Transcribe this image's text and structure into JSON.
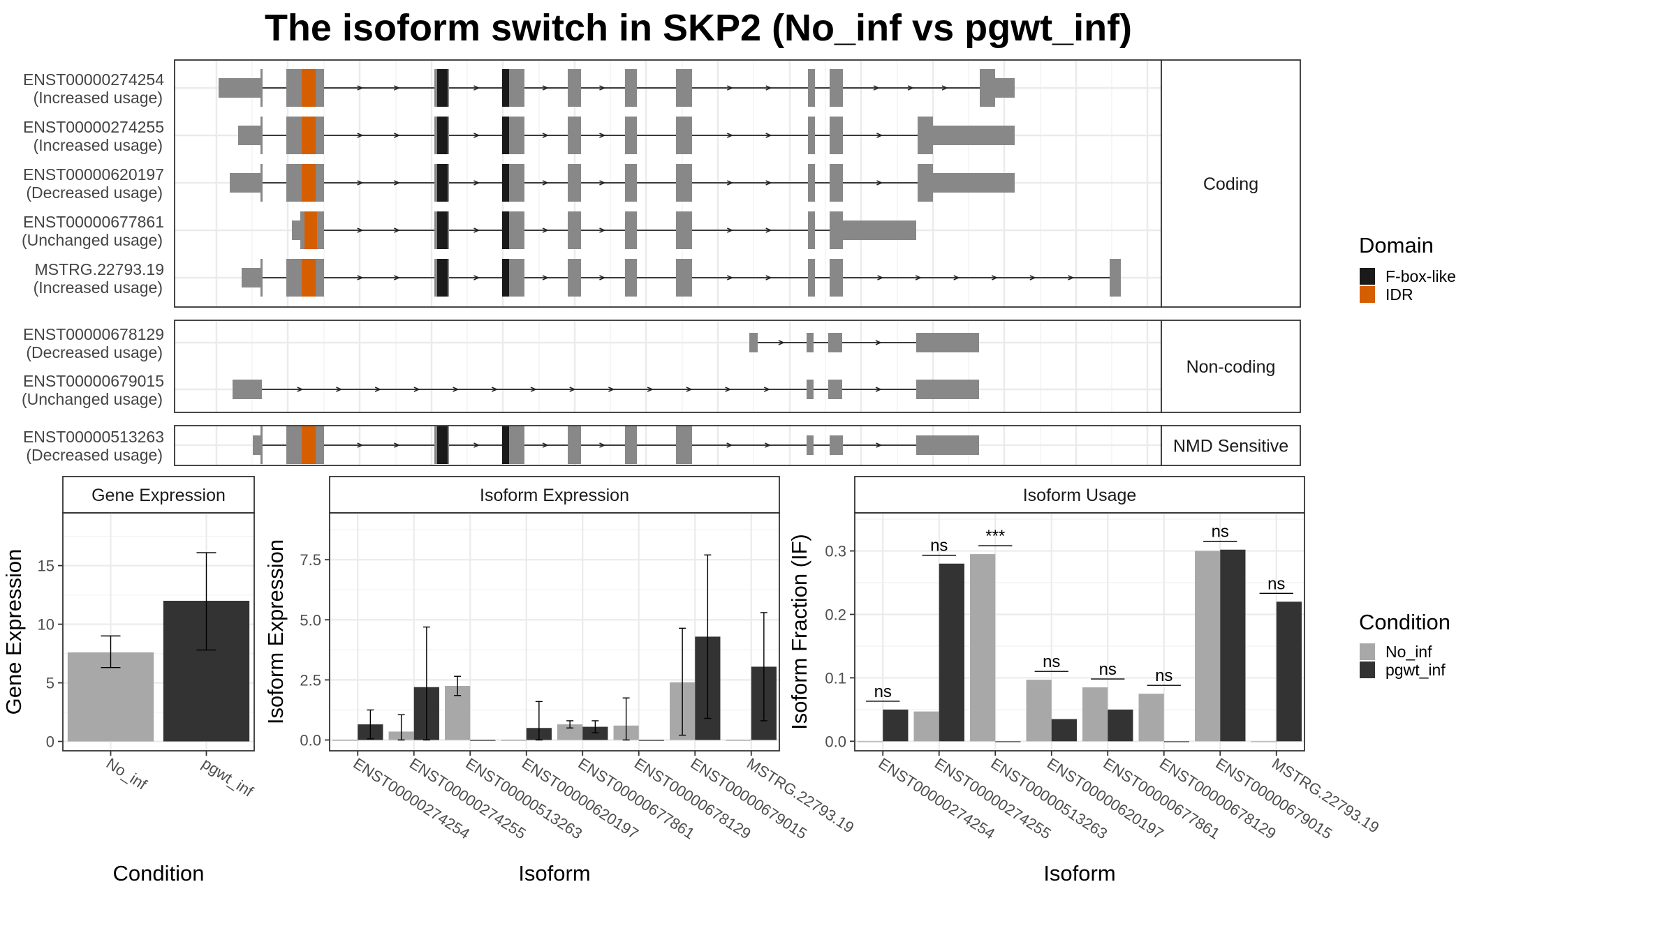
{
  "title": "The isoform switch in SKP2 (No_inf vs pgwt_inf)",
  "colors": {
    "exon": "#888888",
    "fbox": "#1a1a1a",
    "idr": "#d55e00",
    "No_inf": "#a8a8a8",
    "pgwt_inf": "#333333",
    "grid": "#ebebeb",
    "line": "#000000"
  },
  "transcripts": {
    "groups": [
      {
        "label": "Coding",
        "rows": [
          {
            "id": "ENST00000274254",
            "status": "(Increased usage)"
          },
          {
            "id": "ENST00000274255",
            "status": "(Increased usage)"
          },
          {
            "id": "ENST00000620197",
            "status": "(Decreased usage)"
          },
          {
            "id": "ENST00000677861",
            "status": "(Unchanged usage)"
          },
          {
            "id": "MSTRG.22793.19",
            "status": "(Increased usage)"
          }
        ]
      },
      {
        "label": "Non-coding",
        "rows": [
          {
            "id": "ENST00000678129",
            "status": "(Decreased usage)"
          },
          {
            "id": "ENST00000679015",
            "status": "(Unchanged usage)"
          }
        ]
      },
      {
        "label": "NMD Sensitive",
        "rows": [
          {
            "id": "ENST00000513263",
            "status": "(Decreased usage)"
          }
        ]
      }
    ],
    "domain_legend": {
      "title": "Domain",
      "items": [
        {
          "label": "F-box-like",
          "color": "#1a1a1a"
        },
        {
          "label": "IDR",
          "color": "#d55e00"
        }
      ]
    }
  },
  "condition_legend": {
    "title": "Condition",
    "items": [
      {
        "label": "No_inf",
        "color": "#a8a8a8"
      },
      {
        "label": "pgwt_inf",
        "color": "#333333"
      }
    ]
  },
  "chart_data": [
    {
      "type": "bar",
      "title": "Gene Expression",
      "xlabel": "Condition",
      "ylabel": "Gene Expression",
      "categories": [
        "No_inf",
        "pgwt_inf"
      ],
      "values": [
        7.6,
        12.0
      ],
      "error_low": [
        6.3,
        7.8
      ],
      "error_high": [
        9.0,
        16.1
      ],
      "yticks": [
        0,
        5,
        10,
        15
      ],
      "ylim": [
        -0.8,
        19.5
      ]
    },
    {
      "type": "bar",
      "title": "Isoform Expression",
      "xlabel": "Isoform",
      "ylabel": "Isoform Expression",
      "categories": [
        "ENST00000274254",
        "ENST00000274255",
        "ENST00000513263",
        "ENST00000620197",
        "ENST00000677861",
        "ENST00000678129",
        "ENST00000679015",
        "MSTRG.22793.19"
      ],
      "series": [
        {
          "name": "No_inf",
          "values": [
            0.0,
            0.35,
            2.25,
            0.0,
            0.65,
            0.6,
            2.4,
            0.0
          ],
          "error_low": [
            null,
            0.0,
            1.85,
            null,
            0.5,
            0.0,
            0.2,
            null
          ],
          "error_high": [
            null,
            1.05,
            2.65,
            null,
            0.8,
            1.75,
            4.65,
            null
          ]
        },
        {
          "name": "pgwt_inf",
          "values": [
            0.65,
            2.2,
            0.0,
            0.5,
            0.55,
            0.0,
            4.3,
            3.05
          ],
          "error_low": [
            0.05,
            0.0,
            null,
            0.0,
            0.3,
            null,
            0.9,
            0.8
          ],
          "error_high": [
            1.25,
            4.7,
            null,
            1.6,
            0.8,
            null,
            7.7,
            5.3
          ]
        }
      ],
      "yticks": [
        0.0,
        2.5,
        5.0,
        7.5
      ],
      "ylim": [
        -0.45,
        9.45
      ]
    },
    {
      "type": "bar",
      "title": "Isoform Usage",
      "xlabel": "Isoform",
      "ylabel": "Isoform Fraction (IF)",
      "categories": [
        "ENST00000274254",
        "ENST00000274255",
        "ENST00000513263",
        "ENST00000620197",
        "ENST00000677861",
        "ENST00000678129",
        "ENST00000679015",
        "MSTRG.22793.19"
      ],
      "series": [
        {
          "name": "No_inf",
          "values": [
            0.0,
            0.047,
            0.295,
            0.097,
            0.085,
            0.075,
            0.3,
            0.0
          ]
        },
        {
          "name": "pgwt_inf",
          "values": [
            0.05,
            0.28,
            0.0,
            0.035,
            0.05,
            0.0,
            0.302,
            0.22
          ]
        }
      ],
      "significance": [
        "ns",
        "ns",
        "***",
        "ns",
        "ns",
        "ns",
        "ns",
        "ns"
      ],
      "yticks": [
        0.0,
        0.1,
        0.2,
        0.3
      ],
      "ylim": [
        -0.015,
        0.36
      ]
    }
  ]
}
